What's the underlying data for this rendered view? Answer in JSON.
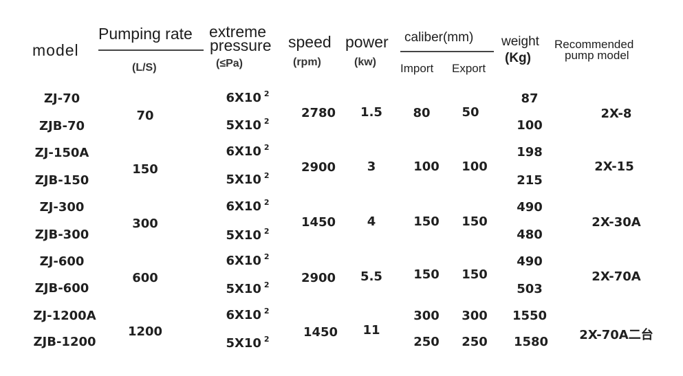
{
  "header": {
    "model": "model",
    "pumping_rate": "Pumping rate",
    "pumping_rate_unit": "(L/S)",
    "extreme_pressure_line1": "extreme",
    "extreme_pressure_line2": "pressure",
    "extreme_pressure_unit": "(≤Pa)",
    "speed": "speed",
    "speed_unit": "(rpm)",
    "power": "power",
    "power_unit": "(kw)",
    "caliber": "caliber(mm)",
    "import": "Import",
    "export": "Export",
    "weight": "weight",
    "weight_unit": "(Kg)",
    "recommended_line1": "Recommended",
    "recommended_line2": "pump model"
  },
  "rows": [
    {
      "model_a": "ZJ-70",
      "model_b": "ZJB-70",
      "rate": "70",
      "pressure_a": "6X10",
      "pressure_b": "5X10",
      "exp": "2",
      "speed": "2780",
      "power": "1.5",
      "import": "80",
      "export": "50",
      "weight_a": "87",
      "weight_b": "100",
      "recommended": "2X-8"
    },
    {
      "model_a": "ZJ-150A",
      "model_b": "ZJB-150",
      "rate": "150",
      "pressure_a": "6X10",
      "pressure_b": "5X10",
      "exp": "2",
      "speed": "2900",
      "power": "3",
      "import": "100",
      "export": "100",
      "weight_a": "198",
      "weight_b": "215",
      "recommended": "2X-15"
    },
    {
      "model_a": "ZJ-300",
      "model_b": "ZJB-300",
      "rate": "300",
      "pressure_a": "6X10",
      "pressure_b": "5X10",
      "exp": "2",
      "speed": "1450",
      "power": "4",
      "import": "150",
      "export": "150",
      "weight_a": "490",
      "weight_b": "480",
      "recommended": "2X-30A"
    },
    {
      "model_a": "ZJ-600",
      "model_b": "ZJB-600",
      "rate": "600",
      "pressure_a": "6X10",
      "pressure_b": "5X10",
      "exp": "2",
      "speed": "2900",
      "power": "5.5",
      "import": "150",
      "export": "150",
      "weight_a": "490",
      "weight_b": "503",
      "recommended": "2X-70A"
    },
    {
      "model_a": "ZJ-1200A",
      "model_b": "ZJB-1200",
      "rate": "1200",
      "pressure_a": "6X10",
      "pressure_b": "5X10",
      "exp": "2",
      "speed": "1450",
      "power": "11",
      "import_a": "300",
      "import_b": "250",
      "export_a": "300",
      "export_b": "250",
      "weight_a": "1550",
      "weight_b": "1580",
      "recommended": "2X-70A二台"
    }
  ]
}
